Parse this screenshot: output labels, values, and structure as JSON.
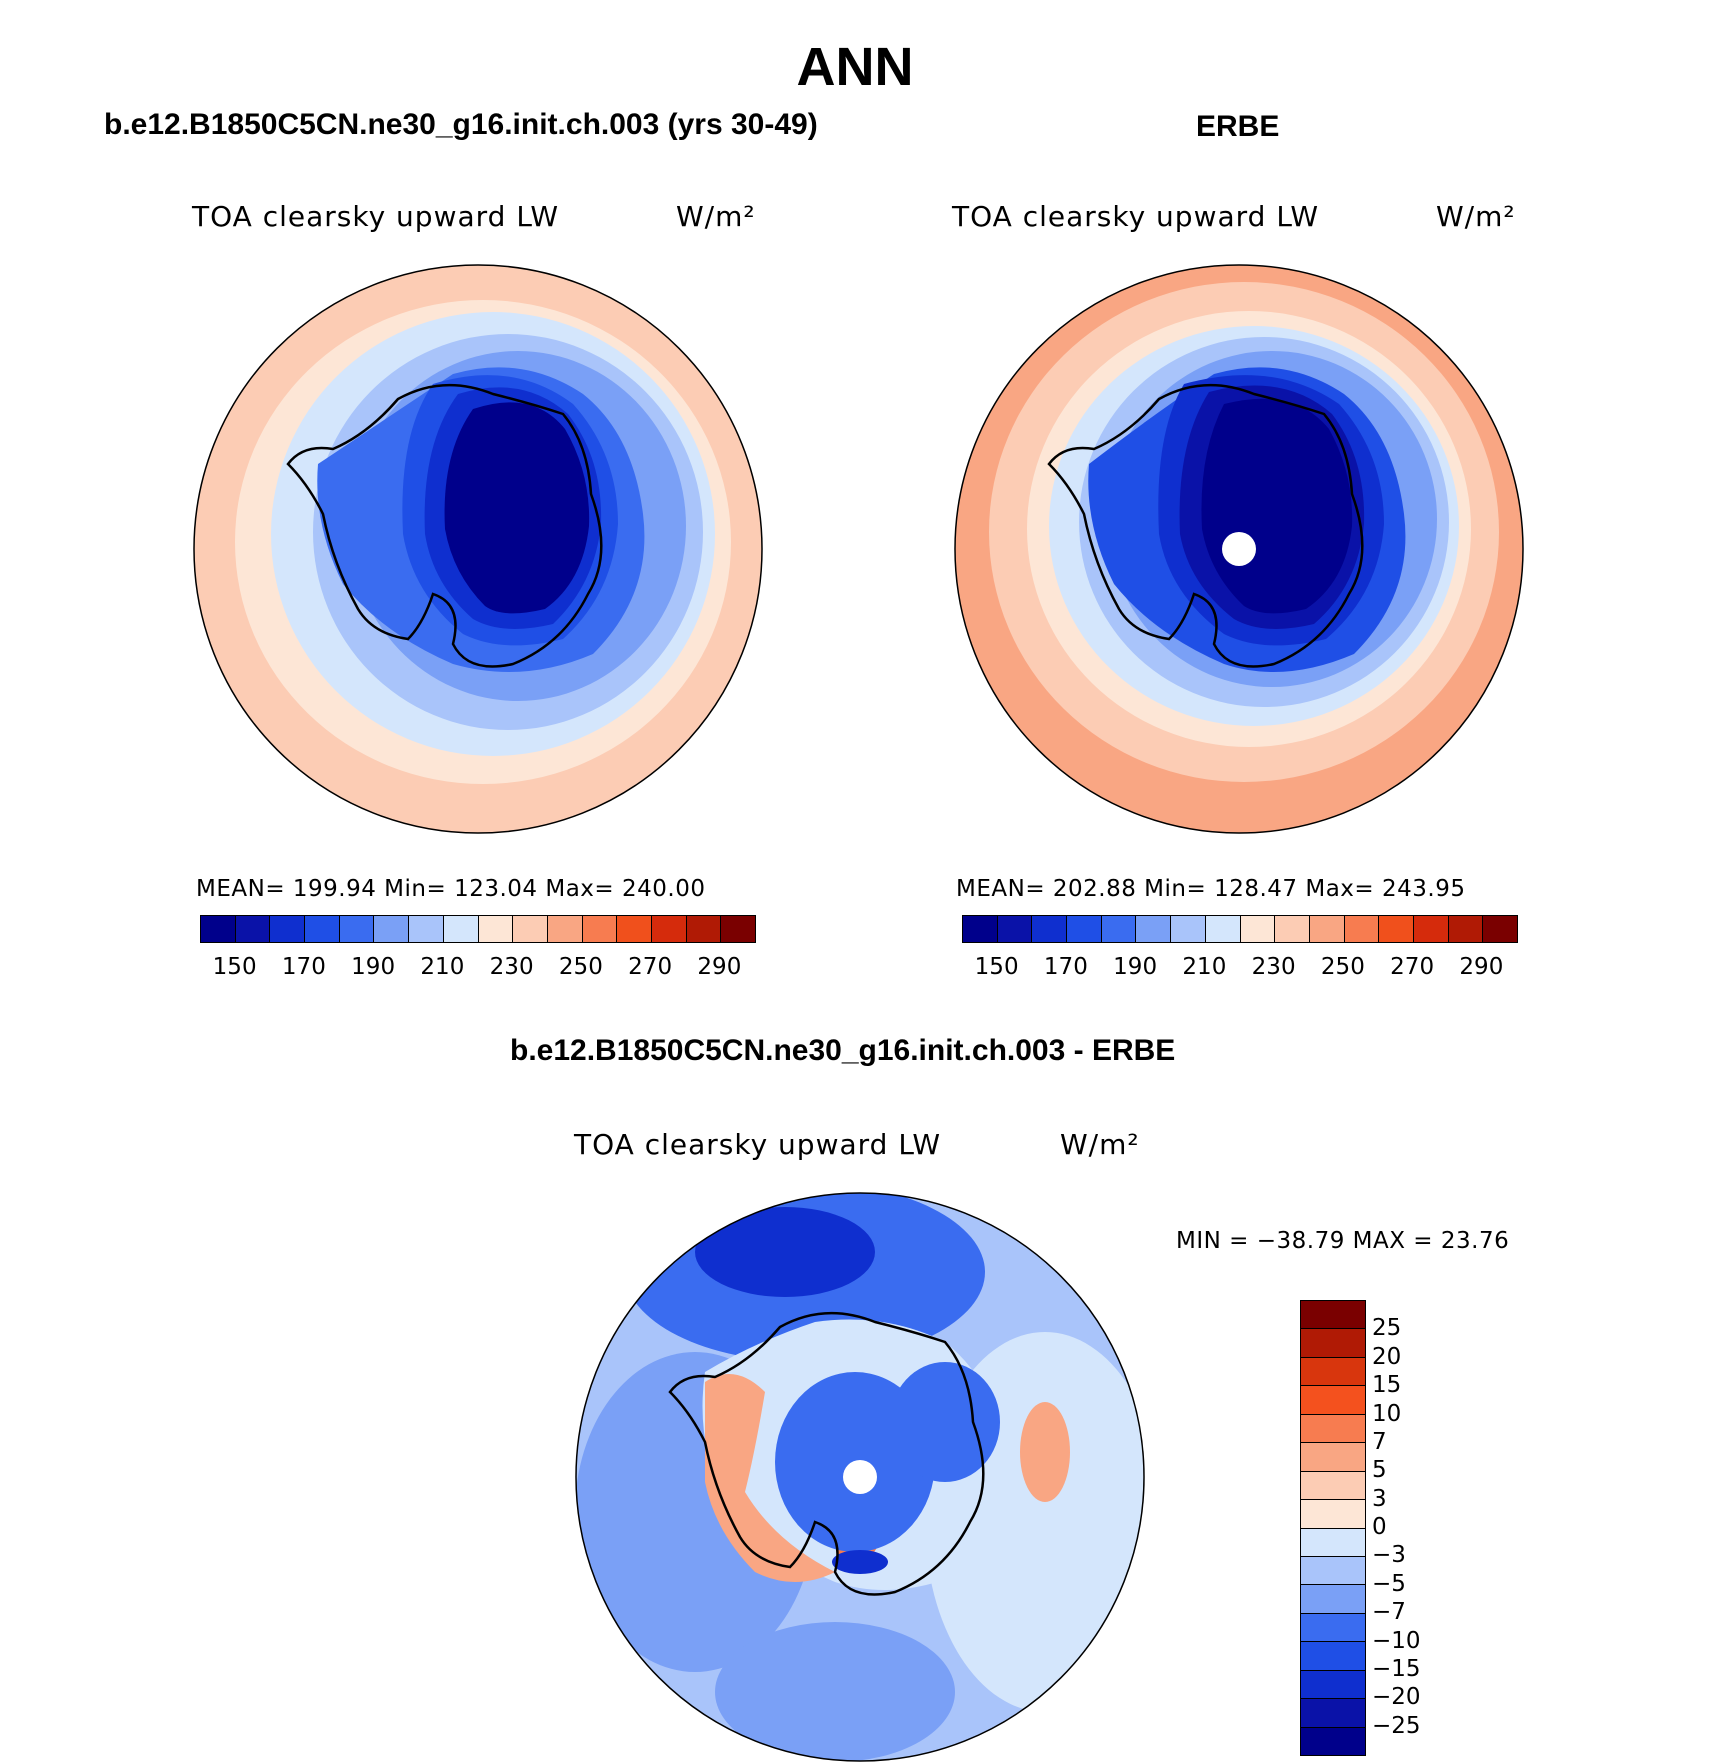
{
  "main_title": "ANN",
  "panels": [
    {
      "title": "b.e12.B1850C5CN.ne30_g16.init.ch.003 (yrs 30-49)",
      "variable": "TOA clearsky upward LW",
      "units": "W/m²",
      "stats": "MEAN= 199.94   Min= 123.04   Max= 240.00"
    },
    {
      "title": "ERBE",
      "variable": "TOA clearsky upward LW",
      "units": "W/m²",
      "stats": "MEAN= 202.88   Min= 128.47   Max= 243.95"
    }
  ],
  "diff_panel": {
    "title": "b.e12.B1850C5CN.ne30_g16.init.ch.003 - ERBE",
    "variable": "TOA clearsky upward LW",
    "units": "W/m²",
    "stats": "MIN = −38.79 MAX =   23.76"
  },
  "colorbar_abs": {
    "colors": [
      "#00008b",
      "#0a12a8",
      "#0f2fcf",
      "#1f4fe6",
      "#3a6cf0",
      "#7aa0f6",
      "#a9c4fa",
      "#d4e6fc",
      "#fde6d6",
      "#fcccb4",
      "#f9a683",
      "#f77c50",
      "#f0501c",
      "#d52b0c",
      "#b01a05",
      "#7a0000"
    ],
    "labels": [
      "150",
      "170",
      "190",
      "210",
      "230",
      "250",
      "270",
      "290"
    ]
  },
  "colorbar_diff": {
    "colors": [
      "#7a0000",
      "#b01a05",
      "#d8360d",
      "#f4511e",
      "#f77c50",
      "#f9a683",
      "#fcccb4",
      "#fde6d6",
      "#d4e6fc",
      "#a9c4fa",
      "#7aa0f6",
      "#3a6cf0",
      "#1f4fe6",
      "#0f2fcf",
      "#0a12a8",
      "#00008b"
    ],
    "labels": [
      "25",
      "20",
      "15",
      "10",
      "7",
      "5",
      "3",
      "0",
      "−3",
      "−5",
      "−7",
      "−10",
      "−15",
      "−20",
      "−25"
    ]
  }
}
